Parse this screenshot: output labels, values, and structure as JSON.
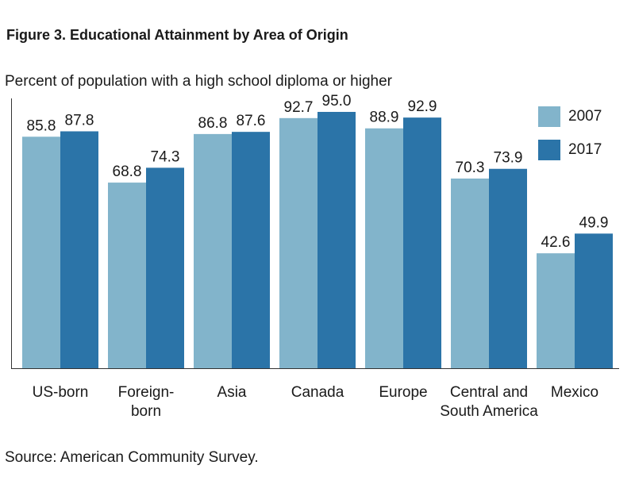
{
  "title": "Figure 3. Educational Attainment by Area of Origin",
  "subtitle": "Percent of population with a high school diploma or higher",
  "source": "Source: American Community Survey.",
  "colors": {
    "series_2007": "#82b4cb",
    "series_2017": "#2b74a8",
    "axis": "#333333"
  },
  "chart_data": {
    "type": "bar",
    "categories": [
      "US-born",
      "Foreign-\nborn",
      "Asia",
      "Canada",
      "Europe",
      "Central and\nSouth America",
      "Mexico"
    ],
    "series": [
      {
        "name": "2007",
        "values": [
          85.8,
          68.8,
          86.8,
          92.7,
          88.9,
          70.3,
          42.6
        ]
      },
      {
        "name": "2017",
        "values": [
          87.8,
          74.3,
          87.6,
          95.0,
          92.9,
          73.9,
          49.9
        ]
      }
    ],
    "value_labels": [
      [
        "85.8",
        "68.8",
        "86.8",
        "92.7",
        "88.9",
        "70.3",
        "42.6"
      ],
      [
        "87.8",
        "74.3",
        "87.6",
        "95.0",
        "92.9",
        "73.9",
        "49.9"
      ]
    ],
    "ylim": [
      0,
      100
    ],
    "grid": false,
    "legend_position": "top-right"
  }
}
